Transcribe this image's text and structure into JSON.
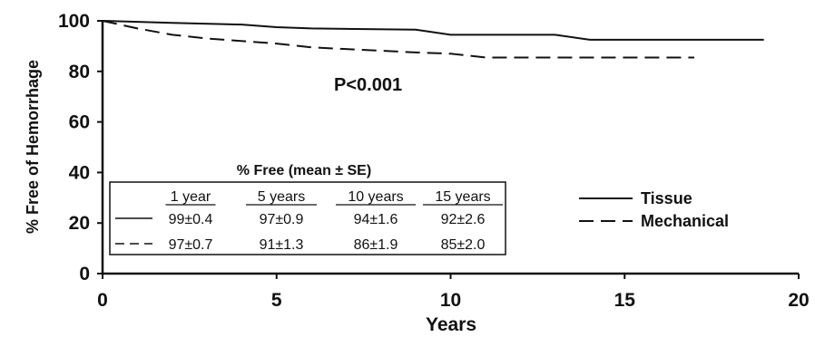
{
  "chart_data": {
    "type": "line",
    "xlabel": "Years",
    "ylabel": "% Free of Hemorrhage",
    "xlim": [
      0,
      20
    ],
    "ylim": [
      0,
      100
    ],
    "xticks": [
      "0",
      "5",
      "10",
      "15",
      "20"
    ],
    "yticks": [
      "0",
      "20",
      "40",
      "60",
      "80",
      "100"
    ],
    "annotation": "P<0.001",
    "grid": false,
    "legend_position": "right",
    "series": [
      {
        "name": "Tissue",
        "style": "solid",
        "color": "#111111",
        "points": [
          [
            0,
            100
          ],
          [
            2,
            99.2
          ],
          [
            4,
            98.5
          ],
          [
            5,
            97.5
          ],
          [
            6,
            97
          ],
          [
            9,
            96.5
          ],
          [
            10,
            94.5
          ],
          [
            13,
            94.5
          ],
          [
            14,
            92.5
          ],
          [
            19,
            92.5
          ]
        ]
      },
      {
        "name": "Mechanical",
        "style": "dashed",
        "color": "#111111",
        "points": [
          [
            0,
            100
          ],
          [
            1,
            97
          ],
          [
            2,
            94.5
          ],
          [
            3,
            93
          ],
          [
            5,
            91
          ],
          [
            6,
            89.5
          ],
          [
            9,
            87.5
          ],
          [
            10,
            87
          ],
          [
            11,
            85.5
          ],
          [
            17,
            85.5
          ]
        ]
      }
    ],
    "table": {
      "title": "% Free (mean ± SE)",
      "columns": [
        "1 year",
        "5 years",
        "10 years",
        "15 years"
      ],
      "rows": [
        [
          "99±0.4",
          "97±0.9",
          "94±1.6",
          "92±2.6"
        ],
        [
          "97±0.7",
          "91±1.3",
          "86±1.9",
          "85±2.0"
        ]
      ]
    }
  }
}
